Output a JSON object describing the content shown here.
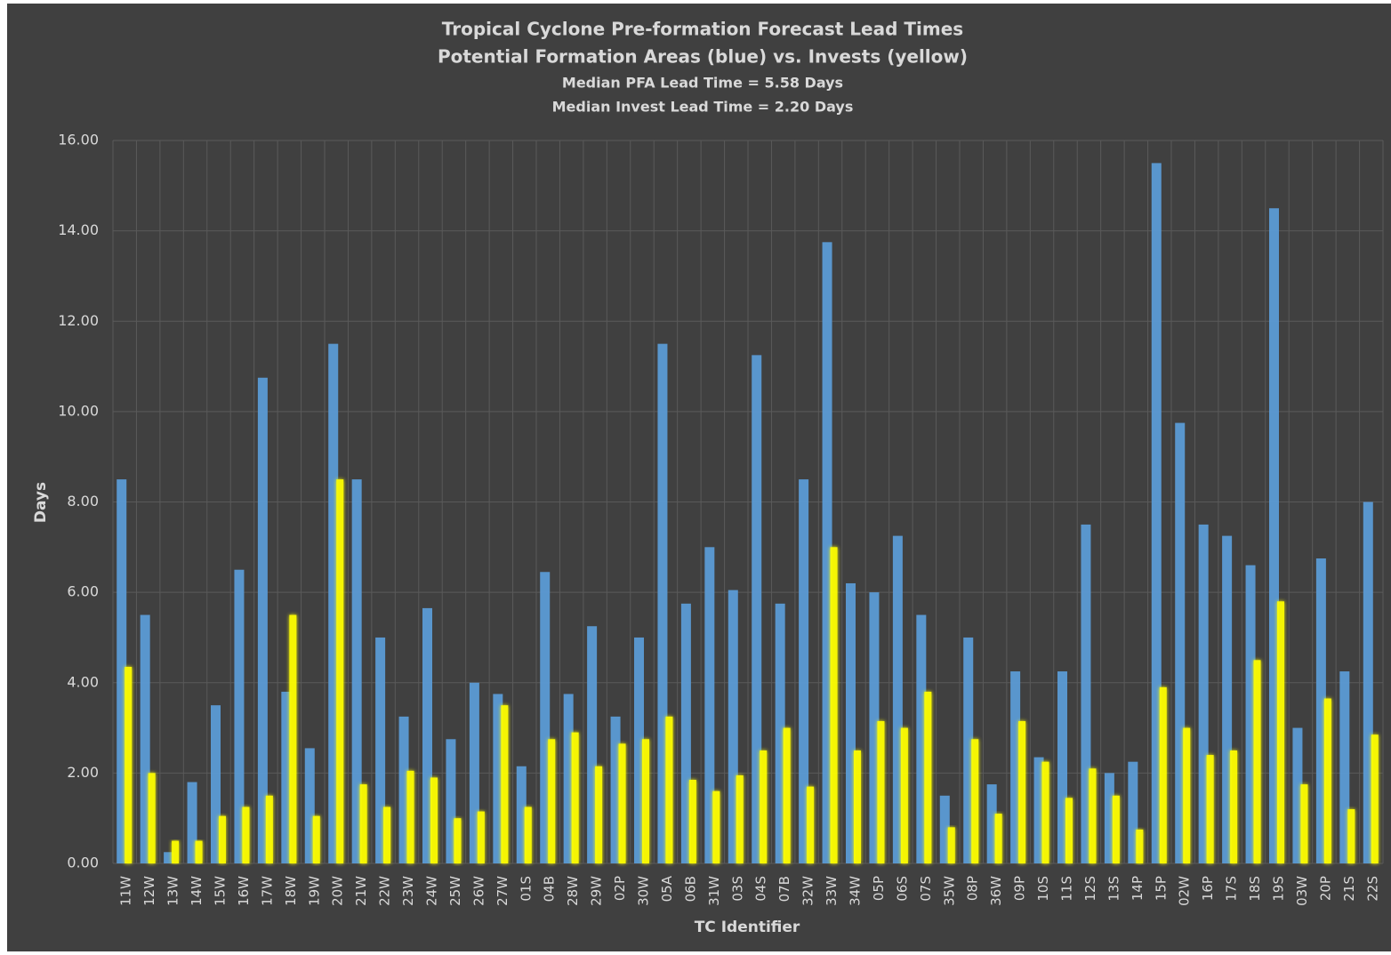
{
  "chart_data": {
    "type": "bar",
    "title": "Tropical Cyclone Pre-formation Forecast Lead Times",
    "subtitle": "Potential Formation Areas (blue) vs. Invests (yellow)",
    "annotations": [
      "Median PFA Lead Time = 5.58 Days",
      "Median Invest Lead Time = 2.20 Days"
    ],
    "x_label": "TC Identifier",
    "y_label": "Days",
    "categories": [
      "11W",
      "12W",
      "13W",
      "14W",
      "15W",
      "16W",
      "17W",
      "18W",
      "19W",
      "20W",
      "21W",
      "22W",
      "23W",
      "24W",
      "25W",
      "26W",
      "27W",
      "01S",
      "04B",
      "28W",
      "29W",
      "02P",
      "30W",
      "05A",
      "06B",
      "31W",
      "03S",
      "04S",
      "07B",
      "32W",
      "33W",
      "34W",
      "05P",
      "06S",
      "07S",
      "35W",
      "08P",
      "36W",
      "09P",
      "10S",
      "11S",
      "12S",
      "13S",
      "14P",
      "15P",
      "02W",
      "16P",
      "17S",
      "18S",
      "19S",
      "03W",
      "20P",
      "21S",
      "22S"
    ],
    "series": [
      {
        "color": "#5b9bd5",
        "values": [
          8.5,
          5.5,
          0.25,
          1.8,
          3.5,
          6.5,
          10.75,
          3.8,
          2.55,
          11.5,
          8.5,
          5.0,
          3.25,
          5.65,
          2.75,
          4.0,
          3.75,
          2.15,
          6.45,
          3.75,
          5.25,
          3.25,
          5.0,
          11.5,
          5.75,
          7.0,
          6.05,
          11.25,
          5.75,
          8.5,
          13.75,
          6.2,
          6.0,
          7.25,
          5.5,
          1.5,
          5.0,
          1.75,
          4.25,
          2.35,
          4.25,
          7.5,
          2.0,
          2.25,
          15.5,
          9.75,
          7.5,
          7.25,
          6.6,
          14.5,
          3.0,
          6.75,
          4.25,
          8.0
        ]
      },
      {
        "color": "#ffff00",
        "values": [
          4.35,
          2.0,
          0.5,
          0.5,
          1.05,
          1.25,
          1.5,
          5.5,
          1.05,
          8.5,
          1.75,
          1.25,
          2.05,
          1.9,
          1.0,
          1.15,
          3.5,
          1.25,
          2.75,
          2.9,
          2.15,
          2.65,
          2.75,
          3.25,
          1.85,
          1.6,
          1.95,
          2.5,
          3.0,
          1.7,
          7.0,
          2.5,
          3.15,
          3.0,
          3.8,
          0.8,
          2.75,
          1.1,
          3.15,
          2.25,
          1.45,
          2.1,
          1.5,
          0.75,
          3.9,
          3.0,
          2.4,
          2.5,
          4.5,
          5.8,
          1.75,
          3.65,
          1.2,
          2.85
        ]
      }
    ],
    "reference_lines": [
      {
        "value": 5.58,
        "color": "#ed7d31"
      },
      {
        "value": 2.2,
        "color": "#ffc000"
      }
    ],
    "ylim": [
      0,
      16
    ],
    "yticks": [
      {
        "value": 0,
        "label": "0.00"
      },
      {
        "value": 2,
        "label": "2.00"
      },
      {
        "value": 4,
        "label": "4.00"
      },
      {
        "value": 6,
        "label": "6.00"
      },
      {
        "value": 8,
        "label": "8.00"
      },
      {
        "value": 10,
        "label": "10.00"
      },
      {
        "value": 12,
        "label": "12.00"
      },
      {
        "value": 14,
        "label": "14.00"
      },
      {
        "value": 16,
        "label": "16.00"
      }
    ],
    "grid": true
  }
}
